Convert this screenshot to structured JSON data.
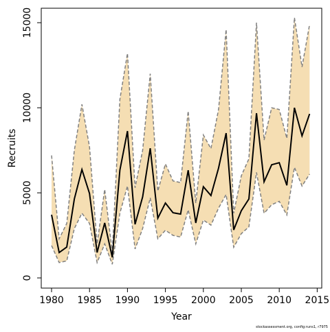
{
  "chart_data": {
    "type": "line",
    "xlabel": "Year",
    "ylabel": "Recruits",
    "footnote": "stockassessment.org, config:runs1, r7975",
    "x": [
      1980,
      1981,
      1982,
      1983,
      1984,
      1985,
      1986,
      1987,
      1988,
      1989,
      1990,
      1991,
      1992,
      1993,
      1994,
      1995,
      1996,
      1997,
      1998,
      1999,
      2000,
      2001,
      2002,
      2003,
      2004,
      2005,
      2006,
      2007,
      2008,
      2009,
      2010,
      2011,
      2012,
      2013,
      2014
    ],
    "values": [
      3710,
      1490,
      1810,
      4640,
      6370,
      4960,
      1490,
      3230,
      1210,
      6330,
      8630,
      3150,
      4760,
      7620,
      3510,
      4400,
      3830,
      3750,
      6330,
      3230,
      5360,
      4840,
      6450,
      8510,
      2820,
      3950,
      4640,
      9680,
      5650,
      6650,
      6770,
      5440,
      10000,
      8350,
      9640
    ],
    "upper": [
      7200,
      2300,
      3200,
      7500,
      10200,
      7700,
      2000,
      5200,
      1500,
      10500,
      13200,
      5300,
      7500,
      12000,
      5100,
      6700,
      5700,
      5600,
      9800,
      4400,
      8400,
      7600,
      9900,
      14600,
      3800,
      6000,
      7000,
      15000,
      8100,
      10000,
      9900,
      8200,
      15300,
      12400,
      14900
    ],
    "lower": [
      1900,
      900,
      1000,
      2900,
      3800,
      3200,
      900,
      2000,
      800,
      3800,
      5400,
      1700,
      2900,
      4700,
      2300,
      2800,
      2500,
      2400,
      4000,
      2000,
      3400,
      3100,
      4100,
      4900,
      1800,
      2600,
      3000,
      6200,
      3800,
      4300,
      4500,
      3700,
      6500,
      5400,
      6100
    ],
    "color": "#000000",
    "band_color": "#f5deb3",
    "bound_color": "#808080",
    "xlim": [
      1978.64,
      2015.6
    ],
    "ylim": [
      -600,
      15850
    ],
    "xticks": [
      1980,
      1985,
      1990,
      1995,
      2000,
      2005,
      2010,
      2015
    ],
    "yticks": [
      0,
      5000,
      10000,
      15000
    ]
  }
}
